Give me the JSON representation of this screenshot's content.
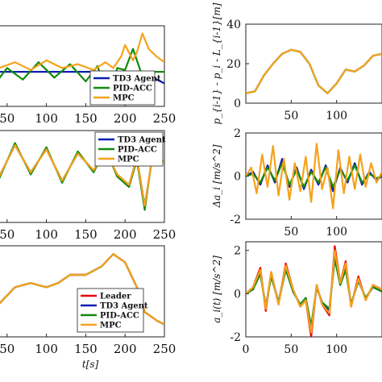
{
  "legend_top_left": [
    "TD3 Agent",
    "PID-ACC",
    "MPC"
  ],
  "legend_mid_left": [
    "TD3 Agent",
    "PID-ACC",
    "MPC"
  ],
  "legend_bottom_left": [
    "Leader",
    "TD3 Agent",
    "PID-ACC",
    "MPC"
  ],
  "colors": {
    "leader": "#e8000b",
    "td3": "#0a1fb0",
    "pid": "#138a0c",
    "mpc": "#f5a21b"
  },
  "chart_data": [
    {
      "type": "line",
      "panel": "top-left",
      "x_ticks": [
        "0",
        "50",
        "100",
        "150",
        "200",
        "250"
      ],
      "xlim": [
        0,
        250
      ],
      "legend": "bottom-right",
      "series": [
        {
          "name": "TD3 Agent",
          "x": [
            0,
            100,
            200,
            220,
            230,
            235,
            250
          ],
          "y": [
            0,
            0,
            0,
            0,
            -0.1,
            -0.3,
            -0.6
          ]
        },
        {
          "name": "PID-ACC",
          "x": [
            0,
            10,
            20,
            35,
            50,
            70,
            90,
            110,
            130,
            150,
            165,
            180,
            190,
            200,
            210,
            220,
            250
          ],
          "y": [
            0,
            -0.5,
            0.3,
            -0.6,
            0.2,
            -0.4,
            0.5,
            -0.3,
            0.4,
            -0.5,
            0.3,
            -1.5,
            0.2,
            0.1,
            1.2,
            0,
            0
          ]
        },
        {
          "name": "MPC",
          "x": [
            0,
            20,
            40,
            60,
            80,
            100,
            120,
            140,
            160,
            175,
            185,
            195,
            200,
            210,
            215,
            222,
            230,
            240,
            250
          ],
          "y": [
            0,
            0.6,
            0.2,
            0.5,
            0.1,
            0.6,
            0.2,
            0.4,
            0.1,
            0.5,
            0.2,
            0.8,
            1.4,
            0.6,
            1.0,
            2.0,
            1.2,
            0.8,
            0.5
          ]
        }
      ]
    },
    {
      "type": "line",
      "panel": "mid-left",
      "x_ticks": [
        "0",
        "50",
        "100",
        "150",
        "200",
        "250"
      ],
      "xlim": [
        0,
        250
      ],
      "legend": "top-right",
      "series": [
        {
          "name": "TD3 Agent",
          "x": [
            0,
            20,
            40,
            60,
            80,
            100,
            120,
            140,
            160,
            175,
            190,
            205,
            215,
            225,
            235,
            250
          ],
          "y": [
            0,
            0.8,
            -0.6,
            0.9,
            -0.4,
            0.7,
            -0.8,
            0.5,
            -0.3,
            0.6,
            -0.5,
            -1.0,
            0.3,
            -2.0,
            0.4,
            0.1
          ]
        },
        {
          "name": "PID-ACC",
          "x": [
            0,
            20,
            40,
            60,
            80,
            100,
            120,
            140,
            160,
            175,
            190,
            205,
            215,
            225,
            235,
            250
          ],
          "y": [
            0,
            0.9,
            -0.7,
            1.0,
            -0.5,
            0.8,
            -0.9,
            0.6,
            -0.4,
            0.7,
            -0.6,
            -1.1,
            0.2,
            -2.2,
            0.5,
            0.1
          ]
        },
        {
          "name": "MPC",
          "x": [
            0,
            20,
            40,
            60,
            80,
            100,
            120,
            140,
            160,
            175,
            190,
            205,
            215,
            225,
            235,
            250
          ],
          "y": [
            0,
            0.8,
            -0.6,
            0.9,
            -0.4,
            0.7,
            -0.8,
            0.5,
            -0.3,
            0.6,
            -0.5,
            -1.0,
            0.3,
            -2.0,
            0.4,
            0.1
          ]
        }
      ]
    },
    {
      "type": "line",
      "panel": "bottom-left",
      "x_ticks": [
        "0",
        "50",
        "100",
        "150",
        "200",
        "250"
      ],
      "xlim": [
        0,
        250
      ],
      "xlabel": "t[s]",
      "legend": "bottom-center",
      "series": [
        {
          "name": "Leader",
          "x": [
            0,
            20,
            40,
            60,
            80,
            100,
            115,
            130,
            150,
            170,
            185,
            200,
            215,
            225,
            240,
            250
          ],
          "y": [
            5,
            6,
            10,
            14,
            15,
            14,
            15,
            17,
            17,
            19,
            22,
            20,
            14,
            8,
            6,
            5
          ]
        },
        {
          "name": "TD3 Agent",
          "x": [
            0,
            20,
            40,
            60,
            80,
            100,
            115,
            130,
            150,
            170,
            185,
            200,
            215,
            225,
            240,
            250
          ],
          "y": [
            5,
            6,
            10,
            14,
            15,
            14,
            15,
            17,
            17,
            19,
            22,
            20,
            14,
            8,
            6,
            5
          ]
        },
        {
          "name": "PID-ACC",
          "x": [
            0,
            20,
            40,
            60,
            80,
            100,
            115,
            130,
            150,
            170,
            185,
            200,
            215,
            225,
            240,
            250
          ],
          "y": [
            5,
            6,
            10,
            14,
            15,
            14,
            15,
            17,
            17,
            19,
            22,
            20,
            14,
            8,
            6,
            5
          ]
        },
        {
          "name": "MPC",
          "x": [
            0,
            20,
            40,
            60,
            80,
            100,
            115,
            130,
            150,
            170,
            185,
            200,
            215,
            225,
            240,
            250
          ],
          "y": [
            5,
            6,
            10,
            14,
            15,
            14,
            15,
            17,
            17,
            19,
            22,
            20,
            14,
            8,
            6,
            5
          ]
        }
      ]
    },
    {
      "type": "line",
      "panel": "top-right",
      "ylabel": "p_{i-1} - p_i - L_{i-1}[m]",
      "x_ticks": [
        "50",
        "100"
      ],
      "y_ticks": [
        "0",
        "20",
        "40"
      ],
      "xlim": [
        0,
        150
      ],
      "ylim": [
        0,
        40
      ],
      "series": [
        {
          "name": "TD3 Agent",
          "x": [
            0,
            10,
            20,
            30,
            40,
            50,
            60,
            70,
            80,
            90,
            100,
            110,
            120,
            130,
            140,
            150
          ],
          "y": [
            5,
            6,
            14,
            20,
            25,
            27,
            26,
            20,
            9,
            5,
            10,
            17,
            16,
            19,
            24,
            25
          ]
        },
        {
          "name": "PID-ACC",
          "x": [
            0,
            10,
            20,
            30,
            40,
            50,
            60,
            70,
            80,
            90,
            100,
            110,
            120,
            130,
            140,
            150
          ],
          "y": [
            5,
            6,
            14,
            20,
            25,
            27,
            26,
            20,
            9,
            5,
            10,
            17,
            16,
            19,
            24,
            25
          ]
        },
        {
          "name": "MPC",
          "x": [
            0,
            10,
            20,
            30,
            40,
            50,
            60,
            70,
            80,
            90,
            100,
            110,
            120,
            130,
            140,
            150
          ],
          "y": [
            5,
            6,
            14,
            20,
            25,
            27,
            26,
            20,
            9,
            5,
            10,
            17,
            16,
            19,
            24,
            25
          ]
        }
      ]
    },
    {
      "type": "line",
      "panel": "mid-right",
      "ylabel": "Δa_i [m/s^2]",
      "x_ticks": [
        "50",
        "100"
      ],
      "y_ticks": [
        "-2",
        "0",
        "2"
      ],
      "xlim": [
        0,
        150
      ],
      "ylim": [
        -2,
        2
      ],
      "series": [
        {
          "name": "TD3 Agent",
          "x": [
            0,
            8,
            16,
            24,
            32,
            40,
            48,
            56,
            64,
            72,
            80,
            88,
            96,
            104,
            112,
            120,
            128,
            136,
            144,
            150
          ],
          "y": [
            0,
            0.2,
            -0.4,
            0.5,
            -0.3,
            0.8,
            -0.5,
            0.4,
            -0.6,
            0.3,
            -0.4,
            0.5,
            -0.7,
            0.4,
            -0.3,
            0.6,
            -0.4,
            0.2,
            -0.2,
            0
          ]
        },
        {
          "name": "PID-ACC",
          "x": [
            0,
            8,
            16,
            24,
            32,
            40,
            48,
            56,
            64,
            72,
            80,
            88,
            96,
            104,
            112,
            120,
            128,
            136,
            144,
            150
          ],
          "y": [
            0,
            0.1,
            -0.3,
            0.4,
            -0.2,
            0.6,
            -0.4,
            0.3,
            -0.5,
            0.2,
            -0.3,
            0.4,
            -0.5,
            0.3,
            -0.2,
            0.5,
            -0.3,
            0.1,
            -0.1,
            0
          ]
        },
        {
          "name": "MPC",
          "x": [
            0,
            6,
            12,
            18,
            24,
            30,
            36,
            42,
            48,
            54,
            60,
            66,
            72,
            78,
            84,
            90,
            96,
            102,
            108,
            114,
            120,
            126,
            132,
            138,
            144,
            150
          ],
          "y": [
            0,
            0.4,
            -0.8,
            1.0,
            -0.5,
            1.4,
            -0.9,
            0.8,
            -1.1,
            0.6,
            -0.7,
            0.9,
            -1.2,
            1.5,
            -0.6,
            0.4,
            -1.5,
            1.2,
            -0.8,
            0.9,
            -0.6,
            1.0,
            -0.5,
            0.6,
            -0.3,
            0.2
          ]
        }
      ]
    },
    {
      "type": "line",
      "panel": "bottom-right",
      "ylabel": "a_i(t) [m/s^2]",
      "x_ticks": [
        "0",
        "50",
        "100"
      ],
      "y_ticks": [
        "-2",
        "0",
        "2"
      ],
      "xlim": [
        0,
        150
      ],
      "ylim": [
        -2,
        2.4
      ],
      "series": [
        {
          "name": "Leader",
          "x": [
            0,
            8,
            16,
            22,
            28,
            36,
            44,
            52,
            60,
            66,
            72,
            78,
            84,
            92,
            98,
            104,
            110,
            116,
            124,
            132,
            140,
            150
          ],
          "y": [
            0,
            0.3,
            1.2,
            -0.8,
            1.0,
            -0.5,
            1.4,
            0.2,
            -0.6,
            -0.3,
            -2.0,
            0.4,
            -0.5,
            -1.0,
            2.2,
            0.5,
            1.5,
            -0.6,
            0.8,
            -0.3,
            0.4,
            0.2
          ]
        },
        {
          "name": "TD3 Agent",
          "x": [
            0,
            8,
            16,
            22,
            28,
            36,
            44,
            52,
            60,
            66,
            72,
            78,
            84,
            92,
            98,
            104,
            110,
            116,
            124,
            132,
            140,
            150
          ],
          "y": [
            0,
            0.2,
            1.0,
            -0.6,
            0.9,
            -0.4,
            1.2,
            0.1,
            -0.5,
            -0.2,
            -1.6,
            0.3,
            -0.4,
            -0.8,
            1.8,
            0.4,
            1.2,
            -0.5,
            0.6,
            -0.2,
            0.3,
            0.1
          ]
        },
        {
          "name": "PID-ACC",
          "x": [
            0,
            8,
            16,
            22,
            28,
            36,
            44,
            52,
            60,
            66,
            72,
            78,
            84,
            92,
            98,
            104,
            110,
            116,
            124,
            132,
            140,
            150
          ],
          "y": [
            0,
            0.2,
            0.9,
            -0.6,
            0.8,
            -0.4,
            1.1,
            0.1,
            -0.5,
            -0.2,
            -1.5,
            0.3,
            -0.4,
            -0.7,
            1.6,
            0.4,
            1.1,
            -0.5,
            0.6,
            -0.2,
            0.3,
            0.1
          ]
        },
        {
          "name": "MPC",
          "x": [
            0,
            8,
            16,
            22,
            28,
            36,
            44,
            52,
            60,
            66,
            72,
            78,
            84,
            92,
            98,
            104,
            110,
            116,
            124,
            132,
            140,
            150
          ],
          "y": [
            0,
            0.3,
            1.1,
            -0.7,
            1.0,
            -0.5,
            1.3,
            0.2,
            -0.6,
            -0.3,
            -1.8,
            0.4,
            -0.5,
            -0.9,
            2.0,
            0.5,
            1.4,
            -0.6,
            0.7,
            -0.3,
            0.4,
            0.2
          ]
        }
      ]
    }
  ]
}
